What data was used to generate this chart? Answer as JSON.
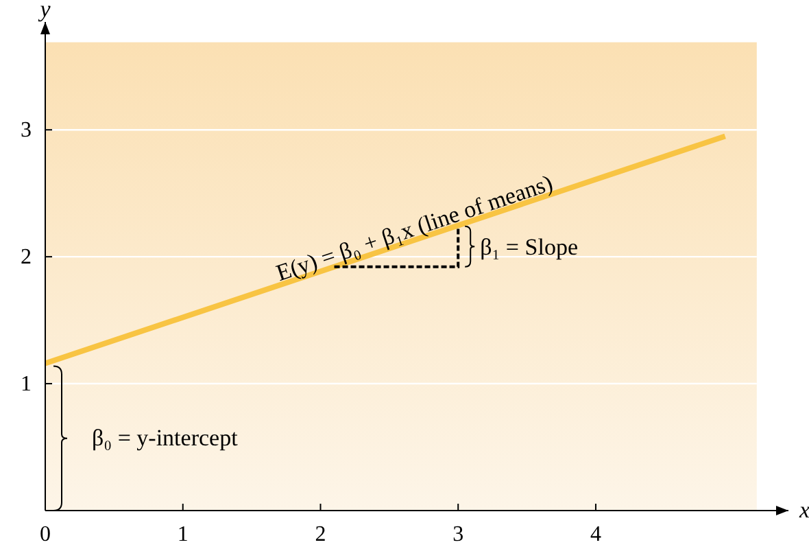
{
  "chart_data": {
    "type": "line",
    "xlabel": "x",
    "ylabel": "y",
    "x": [
      0,
      4.94
    ],
    "series": [
      {
        "color": "#f8c443",
        "values": [
          1.16,
          2.95
        ]
      }
    ],
    "xlim": [
      0,
      5.4
    ],
    "ylim": [
      0,
      3.85
    ],
    "xticks": [
      0,
      1,
      2,
      3,
      4
    ],
    "yticks": [
      1,
      2,
      3
    ],
    "grid": "y",
    "annotations": [
      {
        "text": "E(y) = β₀ + β₁x (line of means)",
        "x": 2.7,
        "y": 2.17
      },
      {
        "text": "β₁ = Slope",
        "x": 3,
        "y": 2.24
      },
      "β₀ = y-intercept"
    ]
  }
}
